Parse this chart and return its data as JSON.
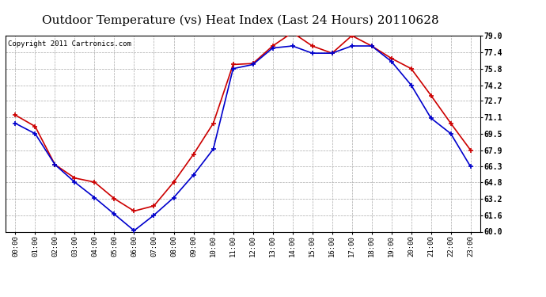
{
  "title": "Outdoor Temperature (vs) Heat Index (Last 24 Hours) 20110628",
  "copyright": "Copyright 2011 Cartronics.com",
  "x_labels": [
    "00:00",
    "01:00",
    "02:00",
    "03:00",
    "04:00",
    "05:00",
    "06:00",
    "07:00",
    "08:00",
    "09:00",
    "10:00",
    "11:00",
    "12:00",
    "13:00",
    "14:00",
    "15:00",
    "16:00",
    "17:00",
    "18:00",
    "19:00",
    "20:00",
    "21:00",
    "22:00",
    "23:00"
  ],
  "temp_blue": [
    70.5,
    69.5,
    66.5,
    64.8,
    63.3,
    61.7,
    60.1,
    61.6,
    63.3,
    65.5,
    68.0,
    75.8,
    76.2,
    77.8,
    78.0,
    77.3,
    77.3,
    78.0,
    78.0,
    76.5,
    74.2,
    71.0,
    69.5,
    66.3
  ],
  "heat_red": [
    71.3,
    70.2,
    66.5,
    65.2,
    64.8,
    63.2,
    62.0,
    62.5,
    64.8,
    67.5,
    70.5,
    76.2,
    76.3,
    78.0,
    79.3,
    78.0,
    77.3,
    79.0,
    78.0,
    76.8,
    75.8,
    73.2,
    70.5,
    67.9
  ],
  "ylim": [
    60.0,
    79.0
  ],
  "yticks": [
    60.0,
    61.6,
    63.2,
    64.8,
    66.3,
    67.9,
    69.5,
    71.1,
    72.7,
    74.2,
    75.8,
    77.4,
    79.0
  ],
  "blue_color": "#0000cc",
  "red_color": "#cc0000",
  "bg_color": "#ffffff",
  "grid_color": "#aaaaaa",
  "title_fontsize": 11,
  "copyright_fontsize": 6.5
}
